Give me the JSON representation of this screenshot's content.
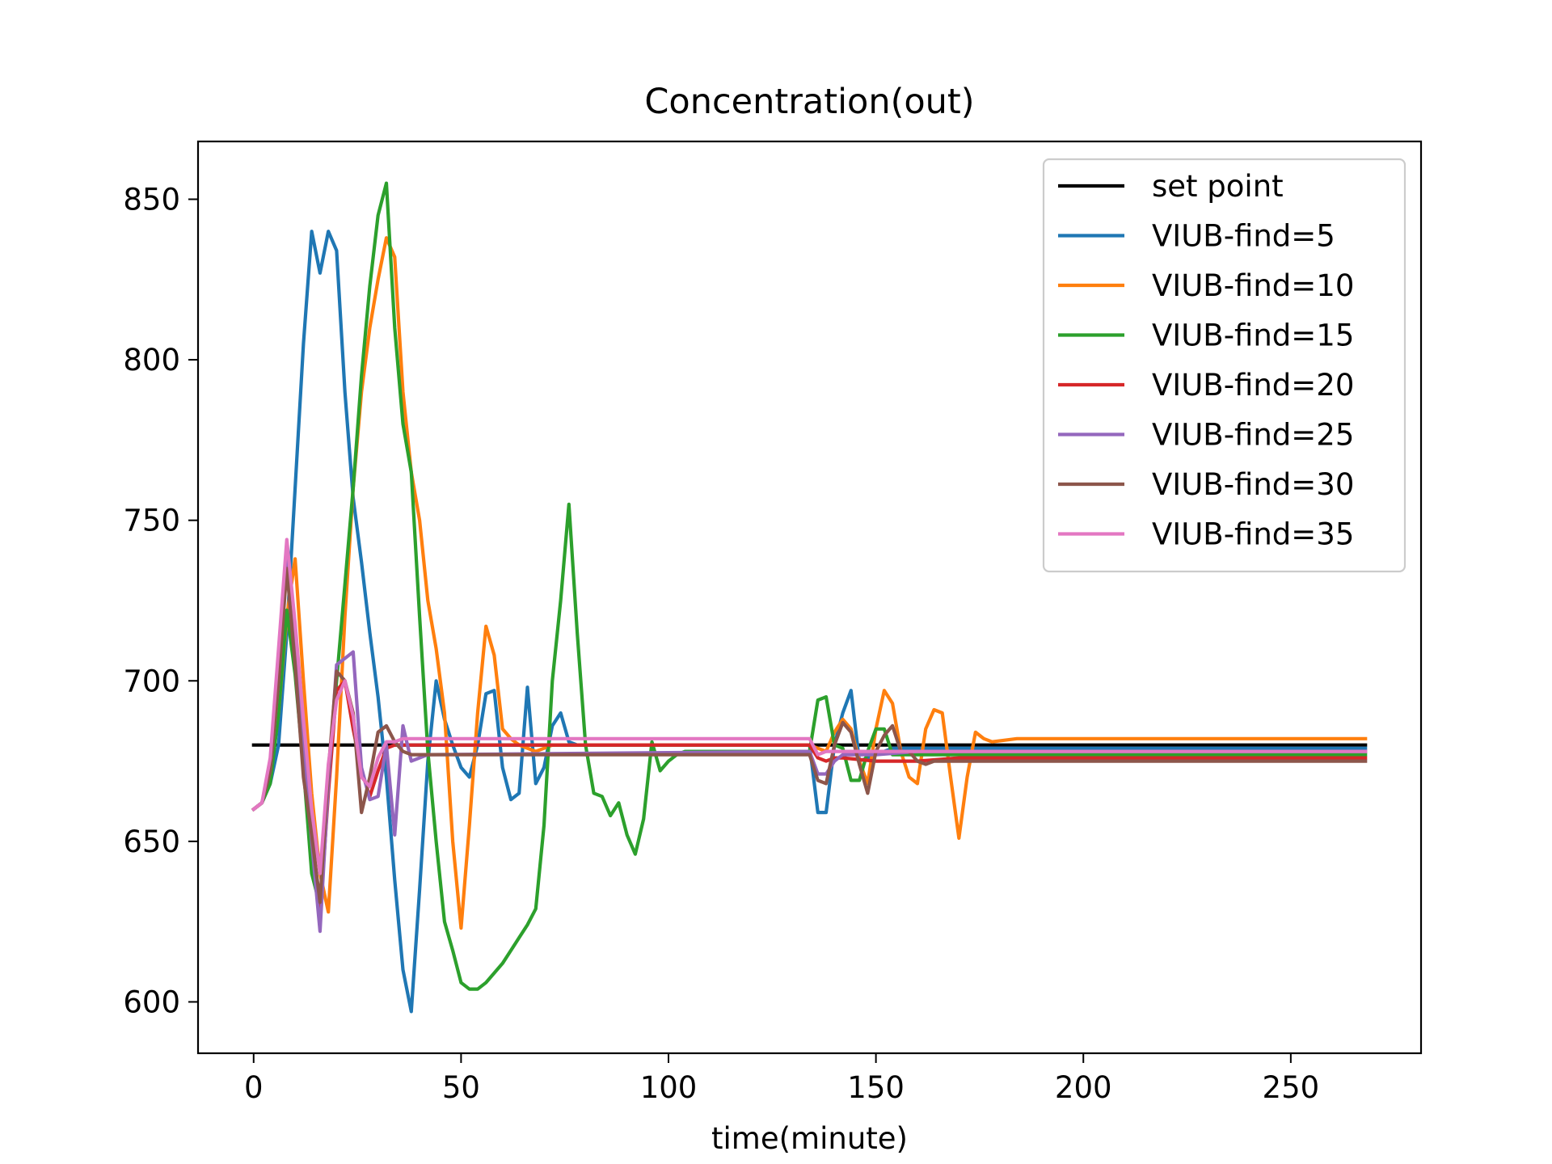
{
  "chart_data": {
    "type": "line",
    "title": "Concentration(out)",
    "xlabel": "time(minute)",
    "ylabel": "",
    "xlim": [
      -13.4,
      281.4
    ],
    "ylim": [
      584,
      868
    ],
    "xticks": [
      0,
      50,
      100,
      150,
      200,
      250
    ],
    "yticks": [
      600,
      650,
      700,
      750,
      800,
      850
    ],
    "grid": false,
    "legend_position": "top-right",
    "series": [
      {
        "name": "set point",
        "color": "#000000",
        "x": [
          0,
          268
        ],
        "y": [
          680,
          680
        ]
      },
      {
        "name": "VIUB-find=5",
        "color": "#1f77b4",
        "x": [
          0,
          2,
          4,
          6,
          8,
          10,
          12,
          14,
          16,
          18,
          20,
          22,
          24,
          26,
          28,
          30,
          32,
          34,
          36,
          38,
          40,
          42,
          44,
          46,
          48,
          50,
          52,
          54,
          56,
          58,
          60,
          62,
          64,
          66,
          68,
          70,
          72,
          74,
          76,
          78,
          80,
          100,
          134,
          136,
          138,
          140,
          142,
          144,
          146,
          148,
          150,
          152,
          154,
          156,
          160,
          170,
          268
        ],
        "y": [
          660,
          662,
          668,
          680,
          715,
          760,
          805,
          840,
          827,
          840,
          834,
          790,
          757,
          737,
          715,
          695,
          670,
          638,
          610,
          597,
          635,
          675,
          700,
          688,
          680,
          673,
          670,
          680,
          696,
          697,
          673,
          663,
          665,
          698,
          668,
          673,
          686,
          690,
          681,
          680,
          680,
          680,
          680,
          659,
          659,
          680,
          690,
          697,
          675,
          676,
          677,
          678,
          679,
          679,
          679,
          679,
          679
        ]
      },
      {
        "name": "VIUB-find=10",
        "color": "#ff7f0e",
        "x": [
          0,
          2,
          4,
          6,
          8,
          10,
          12,
          14,
          16,
          18,
          20,
          22,
          24,
          26,
          28,
          30,
          32,
          34,
          36,
          38,
          40,
          42,
          44,
          46,
          48,
          50,
          52,
          54,
          56,
          58,
          60,
          62,
          64,
          66,
          68,
          70,
          72,
          80,
          100,
          134,
          136,
          138,
          140,
          142,
          144,
          146,
          148,
          150,
          152,
          154,
          156,
          158,
          160,
          162,
          164,
          166,
          168,
          170,
          172,
          174,
          176,
          178,
          184,
          268
        ],
        "y": [
          660,
          662,
          670,
          690,
          720,
          738,
          700,
          665,
          640,
          628,
          670,
          720,
          760,
          790,
          810,
          825,
          838,
          832,
          790,
          765,
          750,
          725,
          710,
          690,
          650,
          623,
          655,
          690,
          717,
          708,
          685,
          682,
          680,
          679,
          678,
          679,
          680,
          680,
          680,
          680,
          679,
          678,
          684,
          688,
          685,
          675,
          668,
          685,
          697,
          693,
          678,
          670,
          668,
          685,
          691,
          690,
          670,
          651,
          670,
          684,
          682,
          681,
          682,
          682
        ]
      },
      {
        "name": "VIUB-find=15",
        "color": "#2ca02c",
        "x": [
          0,
          2,
          4,
          6,
          8,
          10,
          12,
          14,
          16,
          18,
          20,
          22,
          24,
          26,
          28,
          30,
          32,
          34,
          36,
          38,
          40,
          42,
          44,
          46,
          48,
          50,
          52,
          54,
          56,
          58,
          60,
          62,
          64,
          66,
          68,
          70,
          72,
          74,
          76,
          78,
          80,
          82,
          84,
          86,
          88,
          90,
          92,
          94,
          96,
          98,
          100,
          102,
          104,
          134,
          136,
          138,
          140,
          142,
          144,
          146,
          148,
          150,
          152,
          154,
          156,
          160,
          170,
          268
        ],
        "y": [
          660,
          662,
          668,
          690,
          722,
          702,
          673,
          640,
          630,
          670,
          700,
          730,
          760,
          795,
          823,
          845,
          855,
          810,
          780,
          765,
          720,
          678,
          650,
          625,
          616,
          606,
          604,
          604,
          606,
          609,
          612,
          616,
          620,
          624,
          629,
          655,
          700,
          725,
          755,
          715,
          680,
          665,
          664,
          658,
          662,
          652,
          646,
          657,
          681,
          672,
          675,
          677,
          678,
          678,
          694,
          695,
          680,
          679,
          669,
          669,
          678,
          685,
          685,
          677,
          677,
          677,
          677,
          677
        ]
      },
      {
        "name": "VIUB-find=20",
        "color": "#d62728",
        "x": [
          0,
          2,
          4,
          6,
          8,
          10,
          12,
          14,
          16,
          18,
          20,
          22,
          24,
          26,
          28,
          30,
          32,
          34,
          36,
          38,
          40,
          134,
          136,
          138,
          140,
          142,
          150,
          160,
          170,
          268
        ],
        "y": [
          660,
          662,
          672,
          700,
          742,
          715,
          680,
          655,
          627,
          665,
          697,
          700,
          685,
          672,
          664,
          672,
          679,
          680,
          680,
          680,
          680,
          680,
          676,
          675,
          676,
          676,
          675,
          675,
          676,
          676
        ]
      },
      {
        "name": "VIUB-find=25",
        "color": "#9467bd",
        "x": [
          0,
          2,
          4,
          6,
          8,
          10,
          12,
          14,
          16,
          18,
          20,
          22,
          24,
          26,
          28,
          30,
          32,
          34,
          36,
          38,
          40,
          42,
          134,
          136,
          138,
          140,
          142,
          150,
          160,
          170,
          268
        ],
        "y": [
          660,
          662,
          672,
          700,
          738,
          712,
          680,
          650,
          622,
          668,
          705,
          707,
          709,
          673,
          663,
          664,
          680,
          652,
          686,
          675,
          676,
          677,
          678,
          671,
          671,
          675,
          677,
          677,
          678,
          678,
          678
        ]
      },
      {
        "name": "VIUB-find=30",
        "color": "#8c564b",
        "x": [
          0,
          2,
          4,
          6,
          8,
          10,
          12,
          14,
          16,
          18,
          20,
          22,
          24,
          26,
          28,
          30,
          32,
          34,
          36,
          38,
          40,
          100,
          134,
          136,
          138,
          140,
          142,
          144,
          146,
          148,
          150,
          152,
          154,
          156,
          158,
          160,
          162,
          164,
          170,
          268
        ],
        "y": [
          660,
          662,
          672,
          700,
          735,
          705,
          670,
          652,
          631,
          672,
          703,
          700,
          690,
          659,
          670,
          684,
          686,
          681,
          678,
          677,
          677,
          677,
          677,
          669,
          668,
          680,
          687,
          684,
          674,
          665,
          678,
          683,
          686,
          678,
          678,
          675,
          674,
          675,
          675,
          675
        ]
      },
      {
        "name": "VIUB-find=35",
        "color": "#e377c2",
        "x": [
          0,
          2,
          4,
          6,
          8,
          10,
          12,
          14,
          16,
          18,
          20,
          22,
          24,
          26,
          28,
          30,
          32,
          34,
          36,
          38,
          40,
          42,
          100,
          134,
          136,
          138,
          140,
          142,
          150,
          160,
          170,
          268
        ],
        "y": [
          660,
          662,
          676,
          710,
          744,
          718,
          688,
          660,
          640,
          674,
          694,
          700,
          689,
          670,
          667,
          676,
          681,
          681,
          682,
          682,
          682,
          682,
          682,
          682,
          677,
          678,
          678,
          678,
          678,
          678,
          678,
          678
        ]
      }
    ]
  }
}
